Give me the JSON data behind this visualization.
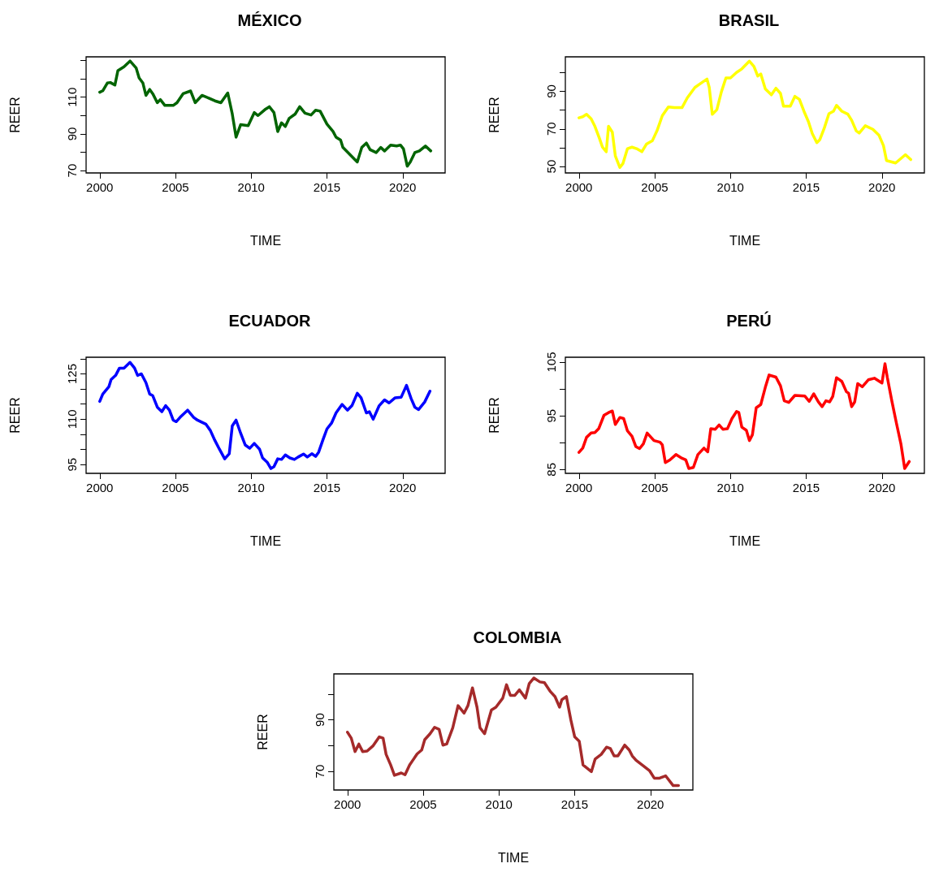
{
  "chart_data": [
    {
      "type": "line",
      "title": "MÉXICO",
      "xlabel": "TIME",
      "ylabel": "REER",
      "marker": "none",
      "xlim": [
        1999.1,
        2022.8
      ],
      "ylim": [
        68.7,
        132
      ],
      "xticks": [
        2000,
        2005,
        2010,
        2015,
        2020
      ],
      "yticks": [
        70,
        {
          "value": 80,
          "label": null
        },
        90,
        {
          "value": 100,
          "label": null
        },
        110,
        {
          "value": 120,
          "label": null
        },
        {
          "value": 130,
          "label": null
        }
      ],
      "x": [
        2000,
        2000.2,
        2000.5,
        2000.7,
        2001,
        2001.2,
        2001.6,
        2002,
        2002.4,
        2002.6,
        2002.85,
        2003.05,
        2003.3,
        2003.5,
        2003.8,
        2004,
        2004.3,
        2004.85,
        2005.1,
        2005.5,
        2006,
        2006.3,
        2006.75,
        2007.2,
        2007.6,
        2008,
        2008.45,
        2008.75,
        2009,
        2009.3,
        2009.8,
        2010.2,
        2010.45,
        2010.9,
        2011.2,
        2011.5,
        2011.75,
        2012,
        2012.25,
        2012.5,
        2012.9,
        2013.2,
        2013.55,
        2013.95,
        2014.25,
        2014.55,
        2015,
        2015.4,
        2015.6,
        2015.9,
        2016.05,
        2017,
        2017.3,
        2017.6,
        2017.85,
        2018.25,
        2018.55,
        2018.8,
        2019.2,
        2019.6,
        2019.85,
        2020.05,
        2020.3,
        2020.5,
        2020.8,
        2021.1,
        2021.5,
        2021.85
      ],
      "series": [
        {
          "color": "#006400",
          "values": [
            112.7,
            113.5,
            117.7,
            118,
            116.6,
            124.5,
            126.6,
            129.7,
            126,
            120.5,
            117.7,
            111,
            114.2,
            111.9,
            107,
            108.7,
            105.5,
            105.5,
            107,
            111.9,
            113.4,
            107,
            111,
            109.5,
            108,
            107,
            112.3,
            100.8,
            88.2,
            95,
            94.5,
            101.6,
            100,
            103.2,
            104.8,
            101.6,
            91.3,
            96,
            94,
            98.4,
            100.8,
            104.8,
            101.3,
            100.3,
            102.9,
            102.4,
            95.3,
            91.3,
            88.2,
            86.6,
            82.6,
            74.7,
            82.6,
            85,
            81.4,
            79.8,
            82.6,
            80.7,
            83.9,
            83.4,
            83.9,
            81.8,
            72.4,
            74.7,
            79.8,
            80.7,
            83.4,
            80.7
          ]
        }
      ]
    },
    {
      "type": "line",
      "title": "BRASIL",
      "xlabel": "TIME",
      "ylabel": "REER",
      "marker": "none",
      "xlim": [
        1999.1,
        2022.8
      ],
      "ylim": [
        46.6,
        108.3
      ],
      "xticks": [
        2000,
        2005,
        2010,
        2015,
        2020
      ],
      "yticks": [
        50,
        {
          "value": 60,
          "label": null
        },
        70,
        {
          "value": 80,
          "label": null
        },
        90,
        {
          "value": 100,
          "label": null
        }
      ],
      "x": [
        2000,
        2000.25,
        2000.5,
        2000.8,
        2001.05,
        2001.35,
        2001.55,
        2001.8,
        2001.95,
        2002.2,
        2002.4,
        2002.7,
        2002.9,
        2003.2,
        2003.5,
        2003.8,
        2004.15,
        2004.45,
        2004.85,
        2005.15,
        2005.5,
        2005.9,
        2006.3,
        2006.8,
        2007.15,
        2007.65,
        2008,
        2008.45,
        2008.6,
        2008.8,
        2009.1,
        2009.4,
        2009.7,
        2010,
        2010.4,
        2010.75,
        2011.25,
        2011.55,
        2011.8,
        2012,
        2012.3,
        2012.7,
        2013,
        2013.3,
        2013.5,
        2013.95,
        2014.25,
        2014.55,
        2014.85,
        2015.15,
        2015.4,
        2015.7,
        2015.9,
        2016.2,
        2016.5,
        2016.8,
        2017,
        2017.35,
        2017.75,
        2018,
        2018.3,
        2018.5,
        2018.9,
        2019.4,
        2019.8,
        2020.1,
        2020.3,
        2020.9,
        2021.55,
        2021.9
      ],
      "series": [
        {
          "color": "#ffff00",
          "values": [
            75.9,
            76.5,
            77.8,
            75.4,
            71.4,
            65,
            60.3,
            57.9,
            71.4,
            68.3,
            55.6,
            49.5,
            51.6,
            59.5,
            60.3,
            59.5,
            57.9,
            61.9,
            63.8,
            69,
            77,
            81.7,
            81.3,
            81.3,
            86.5,
            92,
            94,
            96.5,
            92,
            77.8,
            80.2,
            89.7,
            97.1,
            97.1,
            100,
            101.9,
            106,
            103.2,
            98.1,
            99.2,
            91.3,
            88.1,
            91.6,
            88.9,
            82.1,
            82.1,
            87.3,
            85.7,
            79.4,
            73.8,
            67.5,
            62.7,
            64.3,
            70.6,
            78.1,
            79.4,
            82.5,
            79.4,
            77.8,
            74.6,
            69,
            67.8,
            71.7,
            69.8,
            66.7,
            61.1,
            53.2,
            51.9,
            56.3,
            53.7
          ]
        }
      ]
    },
    {
      "type": "line",
      "title": "ECUADOR",
      "xlabel": "TIME",
      "ylabel": "REER",
      "marker": "none",
      "xlim": [
        1999.1,
        2022.8
      ],
      "ylim": [
        92.1,
        130.5
      ],
      "xticks": [
        2000,
        2005,
        2010,
        2015,
        2020
      ],
      "yticks": [
        95,
        {
          "value": 100,
          "label": null
        },
        {
          "value": 105,
          "label": null
        },
        110,
        {
          "value": 115,
          "label": null
        },
        {
          "value": 120,
          "label": null
        },
        125,
        {
          "value": 130,
          "label": null
        }
      ],
      "x": [
        2000,
        2000.2,
        2000.6,
        2000.75,
        2001.05,
        2001.3,
        2001.6,
        2002,
        2002.3,
        2002.5,
        2002.75,
        2003.05,
        2003.3,
        2003.5,
        2003.8,
        2004.1,
        2004.35,
        2004.6,
        2004.85,
        2005.05,
        2005.3,
        2005.8,
        2006.2,
        2006.45,
        2006.75,
        2007,
        2007.3,
        2007.6,
        2007.9,
        2008.25,
        2008.55,
        2008.75,
        2009,
        2009.3,
        2009.6,
        2009.9,
        2010.2,
        2010.55,
        2010.75,
        2011.05,
        2011.3,
        2011.5,
        2011.75,
        2012,
        2012.25,
        2012.55,
        2012.85,
        2013.1,
        2013.45,
        2013.7,
        2014,
        2014.25,
        2014.45,
        2014.75,
        2015,
        2015.3,
        2015.6,
        2016,
        2016.35,
        2016.65,
        2017,
        2017.25,
        2017.6,
        2017.8,
        2018.05,
        2018.45,
        2018.8,
        2019.1,
        2019.5,
        2019.9,
        2020.25,
        2020.55,
        2020.8,
        2021.05,
        2021.45,
        2021.8
      ],
      "series": [
        {
          "color": "#0000ff",
          "values": [
            115.9,
            118.3,
            120.7,
            123.1,
            124.5,
            126.9,
            126.9,
            128.8,
            126.9,
            124.5,
            125,
            122.1,
            118.3,
            117.8,
            114,
            112.5,
            114.5,
            113,
            109.7,
            109.2,
            110.6,
            113,
            110.6,
            109.7,
            109,
            108.4,
            106.3,
            103,
            100.1,
            96.9,
            98.6,
            107.8,
            109.7,
            105.4,
            101.5,
            100.4,
            102,
            100.1,
            97.2,
            95.8,
            93.7,
            94.3,
            96.9,
            96.7,
            98.2,
            97.2,
            96.7,
            97.5,
            98.5,
            97.5,
            98.6,
            97.7,
            99.1,
            103.4,
            106.8,
            108.7,
            112.1,
            114.9,
            113,
            114.5,
            118.6,
            117.1,
            112.1,
            112.5,
            110,
            114.5,
            116.4,
            115.4,
            117.1,
            117.3,
            121.2,
            116.9,
            114,
            113.2,
            115.7,
            119.3
          ]
        }
      ]
    },
    {
      "type": "line",
      "title": "PERÚ",
      "xlabel": "TIME",
      "ylabel": "REER",
      "marker": "none",
      "xlim": [
        1999.1,
        2022.8
      ],
      "ylim": [
        84.3,
        105.9
      ],
      "xticks": [
        2000,
        2005,
        2010,
        2015,
        2020
      ],
      "yticks": [
        85,
        {
          "value": 90,
          "label": null
        },
        95,
        {
          "value": 100,
          "label": null
        },
        105
      ],
      "x": [
        2000,
        2000.25,
        2000.5,
        2000.8,
        2001.05,
        2001.3,
        2001.65,
        2001.95,
        2002.2,
        2002.4,
        2002.7,
        2002.95,
        2003.2,
        2003.5,
        2003.75,
        2004,
        2004.25,
        2004.5,
        2004.95,
        2005.35,
        2005.5,
        2005.7,
        2006,
        2006.4,
        2006.8,
        2007.05,
        2007.25,
        2007.55,
        2007.85,
        2008.25,
        2008.5,
        2008.7,
        2009,
        2009.25,
        2009.5,
        2009.8,
        2010.1,
        2010.4,
        2010.55,
        2010.75,
        2011.05,
        2011.25,
        2011.45,
        2011.7,
        2012,
        2012.3,
        2012.55,
        2013,
        2013.3,
        2013.55,
        2013.85,
        2014.25,
        2014.9,
        2015.2,
        2015.5,
        2015.8,
        2016.05,
        2016.3,
        2016.55,
        2016.75,
        2017,
        2017.35,
        2017.65,
        2017.8,
        2018,
        2018.2,
        2018.4,
        2018.7,
        2019.1,
        2019.5,
        2020,
        2020.2,
        2020.35,
        2020.65,
        2020.95,
        2021.25,
        2021.5,
        2021.8
      ],
      "series": [
        {
          "color": "#ff0000",
          "values": [
            88.2,
            89,
            91,
            91.8,
            91.9,
            92.6,
            95.1,
            95.6,
            95.9,
            93.4,
            94.7,
            94.5,
            92.2,
            91.2,
            89.3,
            88.9,
            89.8,
            91.8,
            90.4,
            90.1,
            89.6,
            86.3,
            86.8,
            87.8,
            87.1,
            86.8,
            85.2,
            85.4,
            87.8,
            89,
            88.3,
            92.6,
            92.5,
            93.3,
            92.5,
            92.6,
            94.5,
            95.8,
            95.6,
            92.9,
            92.3,
            90.4,
            91.5,
            96.5,
            97.1,
            100.3,
            102.6,
            102.2,
            100.6,
            97.8,
            97.5,
            98.8,
            98.7,
            97.7,
            99.1,
            97.6,
            96.7,
            97.8,
            97.6,
            98.6,
            102.1,
            101.4,
            99.5,
            99.2,
            96.7,
            97.6,
            101,
            100.4,
            101.7,
            102,
            101.1,
            104.7,
            102.2,
            97.8,
            93.7,
            89.8,
            85.2,
            86.5
          ]
        }
      ]
    },
    {
      "type": "line",
      "title": "COLOMBIA",
      "xlabel": "TIME",
      "ylabel": "REER",
      "marker": "none",
      "xlim": [
        1999.1,
        2022.8
      ],
      "ylim": [
        62.8,
        107.8
      ],
      "xticks": [
        2000,
        2005,
        2010,
        2015,
        2020
      ],
      "yticks": [
        70,
        {
          "value": 80,
          "label": null
        },
        90,
        {
          "value": 100,
          "label": null
        }
      ],
      "x": [
        2000,
        2000.25,
        2000.5,
        2000.75,
        2001,
        2001.3,
        2001.7,
        2002.1,
        2002.35,
        2002.55,
        2002.85,
        2003.1,
        2003.55,
        2003.8,
        2004.1,
        2004.6,
        2004.9,
        2005.1,
        2005.45,
        2005.75,
        2006.05,
        2006.3,
        2006.55,
        2006.95,
        2007.3,
        2007.7,
        2007.95,
        2008.25,
        2008.55,
        2008.75,
        2009.05,
        2009.5,
        2009.8,
        2010.25,
        2010.5,
        2010.75,
        2011.05,
        2011.35,
        2011.75,
        2012,
        2012.3,
        2012.7,
        2013,
        2013.4,
        2013.7,
        2014,
        2014.15,
        2014.45,
        2014.75,
        2015,
        2015.3,
        2015.55,
        2016.1,
        2016.35,
        2016.75,
        2017.1,
        2017.35,
        2017.6,
        2017.85,
        2018.3,
        2018.6,
        2018.8,
        2019.05,
        2019.45,
        2019.95,
        2020.25,
        2020.6,
        2021,
        2021.5,
        2021.85
      ],
      "series": [
        {
          "color": "#a52a2a",
          "values": [
            85.2,
            82.9,
            77.7,
            80.6,
            77.7,
            77.9,
            80,
            83.4,
            82.9,
            76.6,
            72.5,
            68.5,
            69.4,
            68.7,
            72.5,
            76.8,
            78.3,
            82.3,
            84.6,
            87.1,
            86.3,
            80.2,
            80.6,
            86.9,
            95.5,
            92.6,
            95.5,
            102.4,
            94.9,
            86.9,
            84.6,
            93.8,
            94.9,
            98.4,
            103.6,
            99.5,
            99.5,
            101.6,
            98.4,
            104.1,
            106.2,
            104.7,
            104.4,
            100.9,
            99,
            94.9,
            97.8,
            99,
            89.8,
            83.4,
            81.7,
            72.5,
            69.9,
            74.8,
            76.6,
            79.4,
            78.9,
            76,
            76,
            80.2,
            78.3,
            76,
            74.3,
            72.5,
            70.2,
            67.4,
            67.4,
            68.3,
            64.5,
            64.5
          ]
        }
      ]
    }
  ]
}
